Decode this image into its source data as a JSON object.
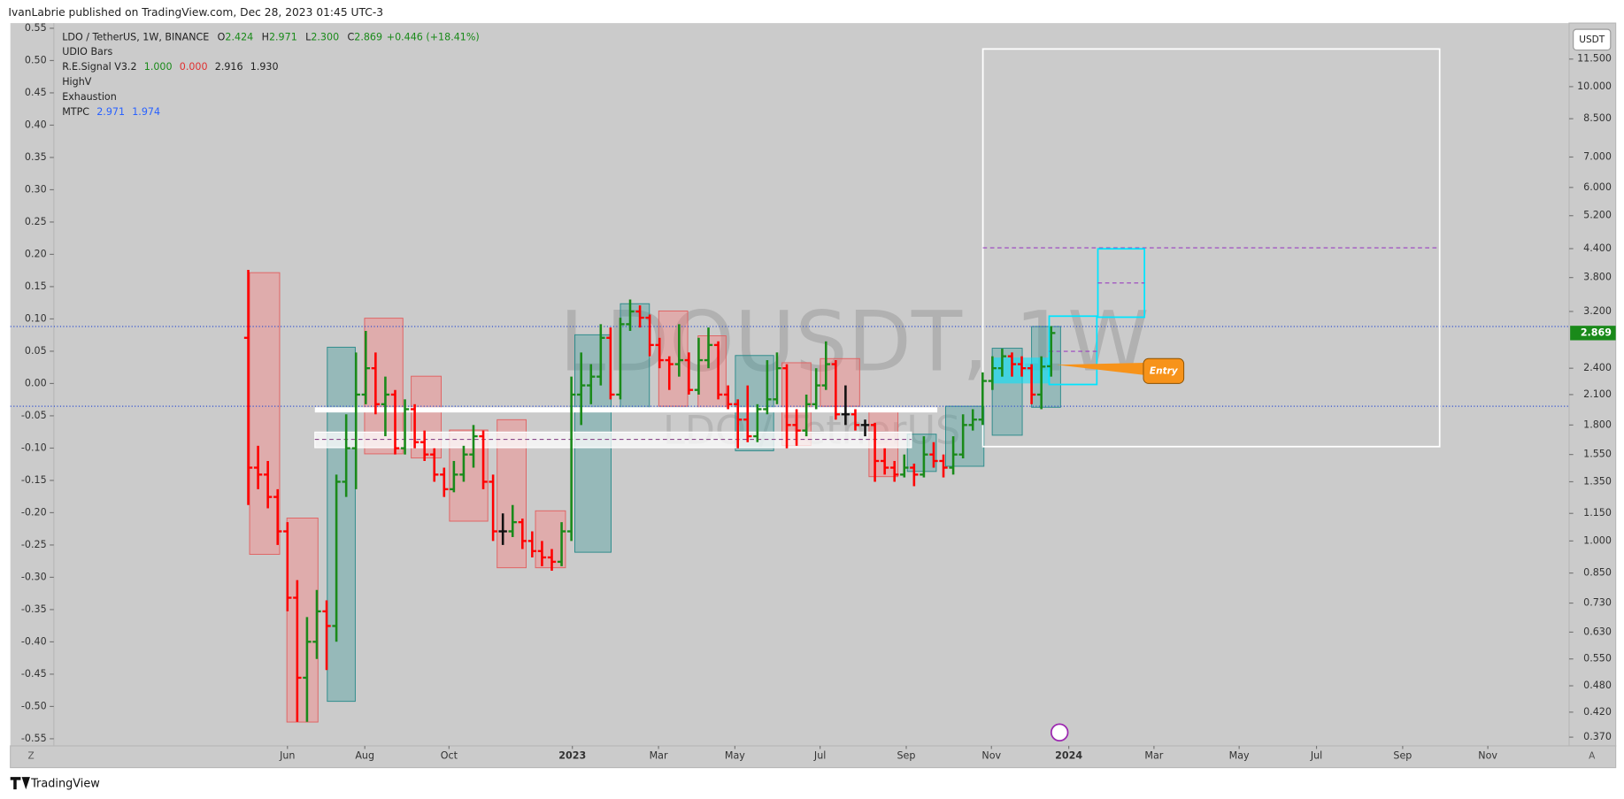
{
  "header": {
    "publisher": "IvanLabrie published on TradingView.com, Dec 28, 2023 01:45 UTC-3",
    "brand": "TradingView"
  },
  "chart_data": {
    "type": "ohlc",
    "watermark": "LDOUSDT, 1W",
    "watermark_sub": "LDO / TetherUS",
    "symbol": "LDO / TetherUS, 1W, BINANCE",
    "ohlc_prefixes": [
      "O",
      "H",
      "L",
      "C"
    ],
    "last_bar_labels": [
      "2.424",
      "2.971",
      "2.300",
      "2.869"
    ],
    "change": "+0.446 (+18.41%)",
    "indicators": [
      {
        "name": "UDIO Bars",
        "values": []
      },
      {
        "name": "R.E.Signal V3.2",
        "values": [
          {
            "label": "1.000",
            "color": "#1a8a1a"
          },
          {
            "label": "0.000",
            "color": "#e03030"
          },
          {
            "label": "2.916",
            "color": "#222222"
          },
          {
            "label": "1.930",
            "color": "#222222"
          }
        ]
      },
      {
        "name": "HighV",
        "values": []
      },
      {
        "name": "Exhaustion",
        "values": []
      },
      {
        "name": "MTPC",
        "values": [
          {
            "label": "2.971",
            "color": "#2962ff"
          },
          {
            "label": "1.974",
            "color": "#2962ff"
          }
        ]
      }
    ],
    "currency": "USDT",
    "annotation": "Entry",
    "scale_buttons": [
      "Z",
      "A"
    ],
    "up_color": "#1a8a1a",
    "down_color": "#ff0000",
    "flat_color": "#111111",
    "log_scale": true,
    "ylim": [
      0.354,
      13.8
    ],
    "yticks": [
      {
        "value": 11.5,
        "label": "11.500"
      },
      {
        "value": 10,
        "label": "10.000"
      },
      {
        "value": 8.5,
        "label": "8.500"
      },
      {
        "value": 7,
        "label": "7.000"
      },
      {
        "value": 6,
        "label": "6.000"
      },
      {
        "value": 5.2,
        "label": "5.200"
      },
      {
        "value": 4.4,
        "label": "4.400"
      },
      {
        "value": 3.8,
        "label": "3.800"
      },
      {
        "value": 3.2,
        "label": "3.200"
      },
      {
        "value": 2.4,
        "label": "2.400"
      },
      {
        "value": 2.1,
        "label": "2.100"
      },
      {
        "value": 1.8,
        "label": "1.800"
      },
      {
        "value": 1.55,
        "label": "1.550"
      },
      {
        "value": 1.35,
        "label": "1.350"
      },
      {
        "value": 1.15,
        "label": "1.150"
      },
      {
        "value": 1,
        "label": "1.000"
      },
      {
        "value": 0.85,
        "label": "0.850"
      },
      {
        "value": 0.73,
        "label": "0.730"
      },
      {
        "value": 0.63,
        "label": "0.630"
      },
      {
        "value": 0.55,
        "label": "0.550"
      },
      {
        "value": 0.48,
        "label": "0.480"
      },
      {
        "value": 0.42,
        "label": "0.420"
      },
      {
        "value": 0.37,
        "label": "0.370"
      }
    ],
    "y2lim": [
      -0.561,
      0.558
    ],
    "y2ticks": [
      0.55,
      {
        "value": 0.5,
        "label": "0.50"
      },
      0.45,
      {
        "value": 0.4,
        "label": "0.40"
      },
      0.35,
      {
        "value": 0.3,
        "label": "0.30"
      },
      0.25,
      {
        "value": 0.2,
        "label": "0.20"
      },
      0.15,
      {
        "value": 0.1,
        "label": "0.10"
      },
      0.05,
      {
        "value": 0,
        "label": "0.00"
      },
      -0.05,
      {
        "value": -0.1,
        "label": "-0.10"
      },
      -0.15,
      {
        "value": -0.2,
        "label": "-0.20"
      },
      -0.25,
      {
        "value": -0.3,
        "label": "-0.30"
      },
      -0.35,
      {
        "value": -0.4,
        "label": "-0.40"
      },
      -0.45,
      {
        "value": -0.5,
        "label": "-0.50"
      },
      -0.55
    ],
    "xlim": [
      -24.3,
      134.9
    ],
    "xticks": [
      {
        "value": 4.0,
        "label": "Jun"
      },
      {
        "value": 11.9,
        "label": "Aug"
      },
      {
        "value": 20.5,
        "label": "Oct"
      },
      {
        "value": 33.1,
        "label": "2023"
      },
      {
        "value": 41.9,
        "label": "Mar"
      },
      {
        "value": 49.7,
        "label": "May"
      },
      {
        "value": 58.4,
        "label": "Jul"
      },
      {
        "value": 67.2,
        "label": "Sep"
      },
      {
        "value": 75.9,
        "label": "Nov"
      },
      {
        "value": 83.8,
        "label": "2024"
      },
      {
        "value": 92.5,
        "label": "Mar"
      },
      {
        "value": 101.2,
        "label": "May"
      },
      {
        "value": 109.1,
        "label": "Jul"
      },
      {
        "value": 117.9,
        "label": "Sep"
      },
      {
        "value": 126.6,
        "label": "Nov"
      }
    ],
    "ohlc": [
      [
        2.8,
        3.95,
        1.2,
        1.45
      ],
      [
        1.45,
        1.62,
        1.3,
        1.4
      ],
      [
        1.4,
        1.5,
        1.18,
        1.25
      ],
      [
        1.25,
        1.3,
        0.98,
        1.05
      ],
      [
        1.05,
        1.1,
        0.7,
        0.75
      ],
      [
        0.75,
        0.82,
        0.4,
        0.5
      ],
      [
        0.5,
        0.68,
        0.4,
        0.6
      ],
      [
        0.6,
        0.78,
        0.55,
        0.7
      ],
      [
        0.7,
        0.74,
        0.52,
        0.65
      ],
      [
        0.65,
        1.4,
        0.6,
        1.35
      ],
      [
        1.35,
        1.9,
        1.25,
        1.6
      ],
      [
        1.6,
        2.6,
        1.3,
        2.1
      ],
      [
        2.1,
        2.9,
        2.0,
        2.4
      ],
      [
        2.4,
        2.6,
        1.9,
        2.0
      ],
      [
        2.0,
        2.3,
        1.7,
        2.1
      ],
      [
        2.1,
        2.15,
        1.55,
        1.6
      ],
      [
        1.6,
        2.05,
        1.55,
        1.95
      ],
      [
        1.95,
        2.0,
        1.6,
        1.65
      ],
      [
        1.65,
        1.75,
        1.5,
        1.55
      ],
      [
        1.55,
        1.6,
        1.35,
        1.4
      ],
      [
        1.4,
        1.45,
        1.25,
        1.3
      ],
      [
        1.3,
        1.5,
        1.28,
        1.4
      ],
      [
        1.4,
        1.62,
        1.35,
        1.55
      ],
      [
        1.55,
        1.8,
        1.45,
        1.7
      ],
      [
        1.7,
        1.75,
        1.3,
        1.35
      ],
      [
        1.35,
        1.4,
        1.0,
        1.05
      ],
      [
        1.05,
        1.15,
        0.98,
        1.05
      ],
      [
        1.05,
        1.2,
        1.02,
        1.1
      ],
      [
        1.1,
        1.12,
        0.96,
        1.0
      ],
      [
        1.0,
        1.05,
        0.92,
        0.95
      ],
      [
        0.95,
        1.0,
        0.88,
        0.92
      ],
      [
        0.92,
        0.96,
        0.86,
        0.9
      ],
      [
        0.9,
        1.1,
        0.88,
        1.05
      ],
      [
        1.05,
        2.3,
        1.0,
        2.1
      ],
      [
        2.1,
        2.6,
        1.8,
        2.2
      ],
      [
        2.2,
        2.45,
        2.0,
        2.3
      ],
      [
        2.3,
        3.0,
        2.2,
        2.8
      ],
      [
        2.8,
        2.95,
        2.05,
        2.1
      ],
      [
        2.1,
        3.1,
        2.05,
        3.0
      ],
      [
        3.0,
        3.4,
        2.9,
        3.2
      ],
      [
        3.2,
        3.3,
        2.95,
        3.1
      ],
      [
        3.1,
        3.15,
        2.55,
        2.7
      ],
      [
        2.7,
        2.8,
        2.4,
        2.5
      ],
      [
        2.5,
        2.55,
        2.15,
        2.45
      ],
      [
        2.45,
        3.0,
        2.3,
        2.5
      ],
      [
        2.5,
        2.6,
        2.1,
        2.15
      ],
      [
        2.15,
        2.8,
        2.1,
        2.5
      ],
      [
        2.5,
        2.95,
        2.4,
        2.7
      ],
      [
        2.7,
        2.75,
        2.05,
        2.1
      ],
      [
        2.1,
        2.2,
        1.95,
        2.0
      ],
      [
        2.0,
        2.05,
        1.6,
        1.85
      ],
      [
        1.85,
        2.2,
        1.65,
        1.7
      ],
      [
        1.7,
        2.0,
        1.65,
        1.95
      ],
      [
        1.95,
        2.5,
        1.9,
        2.05
      ],
      [
        2.05,
        2.6,
        2.0,
        2.4
      ],
      [
        2.4,
        2.45,
        1.6,
        1.8
      ],
      [
        1.8,
        1.95,
        1.62,
        1.75
      ],
      [
        1.75,
        2.1,
        1.7,
        2.0
      ],
      [
        2.0,
        2.4,
        1.95,
        2.2
      ],
      [
        2.2,
        2.75,
        2.15,
        2.45
      ],
      [
        2.45,
        2.5,
        1.85,
        1.9
      ],
      [
        1.9,
        2.2,
        1.8,
        1.9
      ],
      [
        1.9,
        1.95,
        1.75,
        1.8
      ],
      [
        1.8,
        1.85,
        1.7,
        1.8
      ],
      [
        1.8,
        1.82,
        1.35,
        1.5
      ],
      [
        1.5,
        1.6,
        1.4,
        1.45
      ],
      [
        1.45,
        1.5,
        1.35,
        1.4
      ],
      [
        1.4,
        1.55,
        1.38,
        1.45
      ],
      [
        1.45,
        1.48,
        1.32,
        1.4
      ],
      [
        1.4,
        1.7,
        1.38,
        1.55
      ],
      [
        1.55,
        1.65,
        1.45,
        1.5
      ],
      [
        1.5,
        1.55,
        1.38,
        1.45
      ],
      [
        1.45,
        1.7,
        1.4,
        1.55
      ],
      [
        1.55,
        1.9,
        1.52,
        1.8
      ],
      [
        1.8,
        1.95,
        1.75,
        1.85
      ],
      [
        1.85,
        2.35,
        1.8,
        2.25
      ],
      [
        2.25,
        2.55,
        2.15,
        2.4
      ],
      [
        2.4,
        2.65,
        2.3,
        2.55
      ],
      [
        2.55,
        2.6,
        2.3,
        2.45
      ],
      [
        2.45,
        2.55,
        2.3,
        2.4
      ],
      [
        2.4,
        2.45,
        2.0,
        2.1
      ],
      [
        2.1,
        2.55,
        1.95,
        2.42
      ],
      [
        2.424,
        2.971,
        2.3,
        2.869
      ]
    ]
  }
}
